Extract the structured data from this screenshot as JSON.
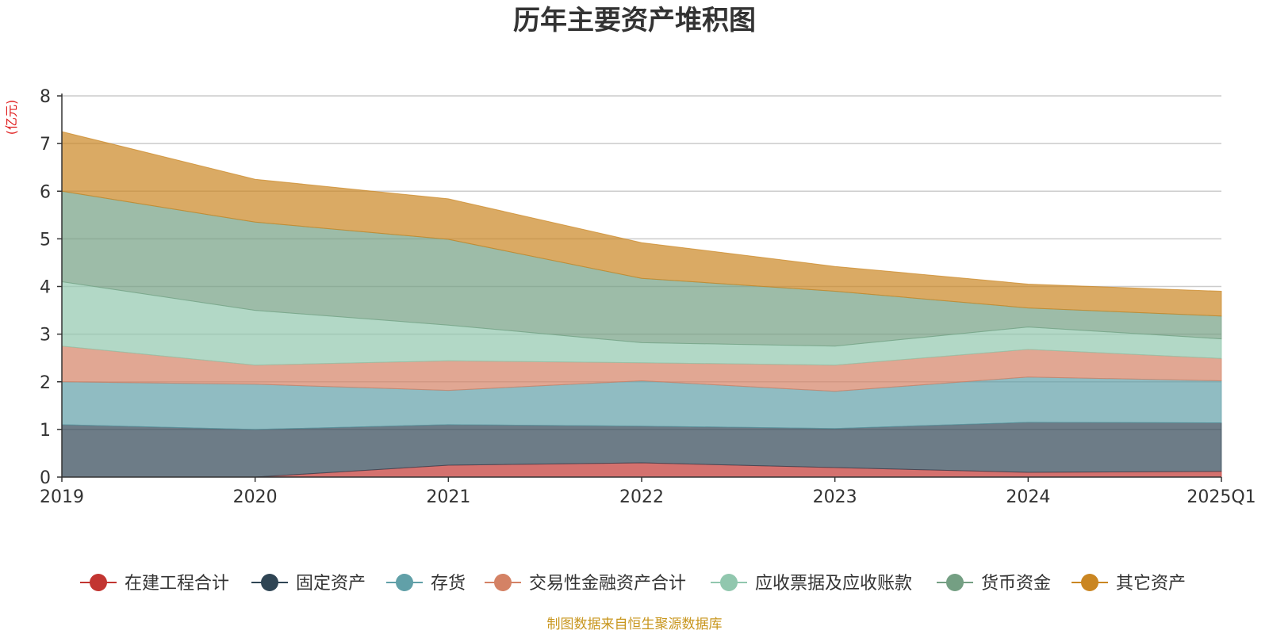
{
  "chart_data": {
    "type": "area",
    "stacked": true,
    "title": "历年主要资产堆积图",
    "ylabel": "(亿元)",
    "xlabel": "",
    "categories": [
      "2019",
      "2020",
      "2021",
      "2022",
      "2023",
      "2024",
      "2025Q1"
    ],
    "ylim": [
      0,
      8
    ],
    "yticks": [
      "0",
      "1",
      "2",
      "3",
      "4",
      "5",
      "6",
      "7",
      "8"
    ],
    "grid": true,
    "legend_position": "bottom",
    "series": [
      {
        "name": "在建工程合计",
        "color": "#c23531",
        "values": [
          0.0,
          0.0,
          0.25,
          0.3,
          0.2,
          0.1,
          0.12
        ]
      },
      {
        "name": "固定资产",
        "color": "#2f4554",
        "values": [
          1.1,
          1.0,
          0.85,
          0.77,
          0.82,
          1.05,
          1.02
        ]
      },
      {
        "name": "存货",
        "color": "#61a0a8",
        "values": [
          0.9,
          0.95,
          0.72,
          0.95,
          0.78,
          0.95,
          0.88
        ]
      },
      {
        "name": "交易性金融资产合计",
        "color": "#d48265",
        "values": [
          0.75,
          0.4,
          0.62,
          0.38,
          0.55,
          0.58,
          0.47
        ]
      },
      {
        "name": "应收票据及应收账款",
        "color": "#91c7ae",
        "values": [
          1.35,
          1.15,
          0.75,
          0.42,
          0.4,
          0.47,
          0.41
        ]
      },
      {
        "name": "货币资金",
        "color": "#749f83",
        "values": [
          1.9,
          1.85,
          1.8,
          1.35,
          1.15,
          0.4,
          0.48
        ]
      },
      {
        "name": "其它资产",
        "color": "#ca8622",
        "values": [
          1.25,
          0.9,
          0.85,
          0.75,
          0.52,
          0.5,
          0.52
        ]
      }
    ],
    "source_note": "制图数据来自恒生聚源数据库"
  }
}
